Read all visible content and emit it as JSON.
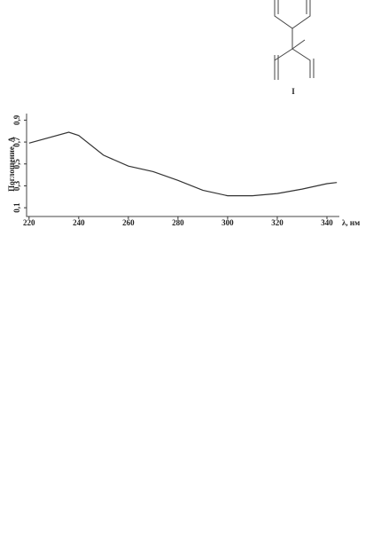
{
  "structure_label": "I",
  "chart_data": {
    "type": "line",
    "x_label": "λ, нм",
    "y_label": "Поглощение, А",
    "x": [
      220,
      236,
      240,
      250,
      260,
      270,
      280,
      290,
      300,
      310,
      320,
      330,
      340,
      344
    ],
    "series": [
      {
        "name": null,
        "color": "#333333",
        "values": [
          0.69,
          0.79,
          0.76,
          0.58,
          0.48,
          0.43,
          0.35,
          0.26,
          0.21,
          0.21,
          0.23,
          0.27,
          0.32,
          0.33
        ]
      }
    ],
    "xlim": [
      219,
      345
    ],
    "ylim": [
      0.02,
      0.96
    ],
    "xticks": [
      220,
      240,
      260,
      280,
      300,
      320,
      340
    ],
    "yticks": [
      {
        "value": 0.1,
        "label": "0,1"
      },
      {
        "value": 0.3,
        "label": "0,3"
      },
      {
        "value": 0.5,
        "label": "0,5"
      },
      {
        "value": 0.7,
        "label": "0,7"
      },
      {
        "value": 0.9,
        "label": "0,9"
      }
    ],
    "grid": false
  }
}
